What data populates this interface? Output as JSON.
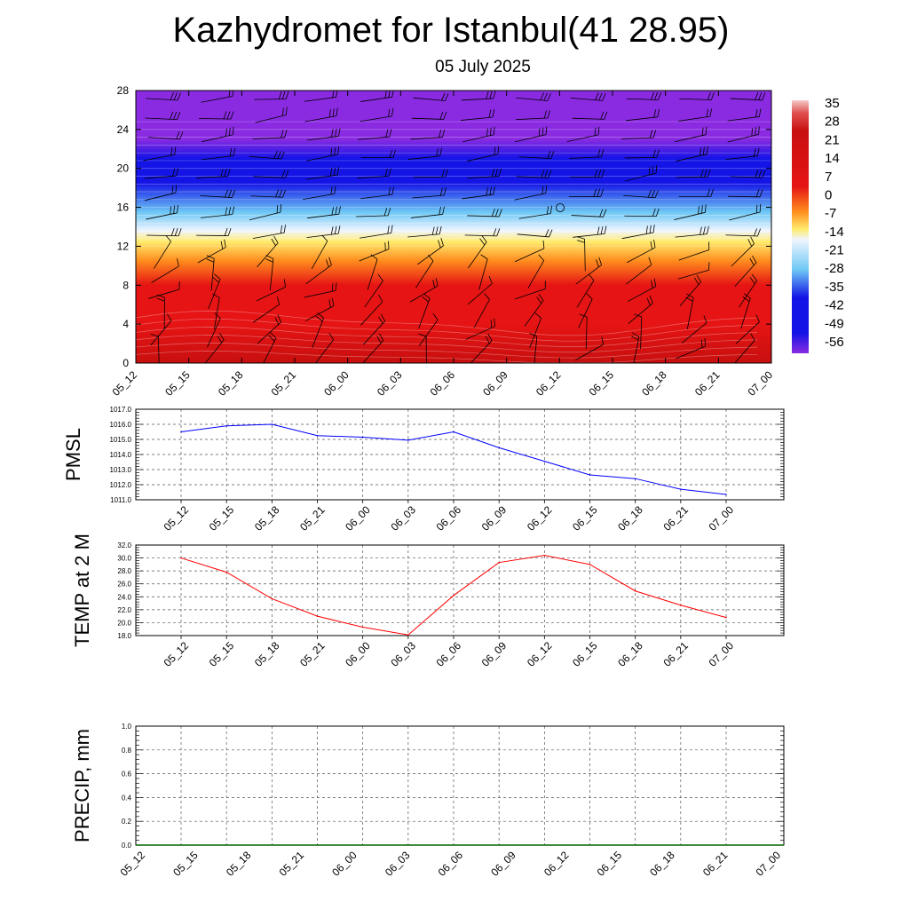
{
  "title": "Kazhydromet for Istanbul(41 28.95)",
  "subtitle": "05 July 2025",
  "chart_data": [
    {
      "type": "heatmap",
      "x_tick_labels": [
        "05_12",
        "05_15",
        "05_18",
        "05_21",
        "06_00",
        "06_03",
        "06_06",
        "06_09",
        "06_12",
        "06_15",
        "06_18",
        "06_21",
        "07_00"
      ],
      "ylabel": "",
      "y_ticks": [
        0,
        4,
        8,
        12,
        16,
        20,
        24,
        28
      ],
      "ylim": [
        0,
        28
      ],
      "colorbar_labels": [
        "35",
        "28",
        "21",
        "14",
        "7",
        "0",
        "-7",
        "-14",
        "-21",
        "-28",
        "-35",
        "-42",
        "-49",
        "-56"
      ],
      "colorbar_range": [
        -63,
        42
      ],
      "colors": {
        "violet": "#8a2be2",
        "blue": "#1414e6",
        "light_blue": "#6ec8f5",
        "pale": "#f0f5ff",
        "yellow": "#ffec6e",
        "orange": "#ff8c1e",
        "red": "#e61414",
        "dark_red": "#c80f0f"
      },
      "overlay": "wind barbs",
      "grid": false
    },
    {
      "type": "line",
      "ylabel": "PMSL",
      "x": [
        "05_12",
        "05_15",
        "05_18",
        "05_21",
        "06_00",
        "06_03",
        "06_06",
        "06_09",
        "06_12",
        "06_15",
        "06_18",
        "06_21",
        "07_00"
      ],
      "values": [
        1015.5,
        1015.9,
        1016.0,
        1015.25,
        1015.15,
        1014.95,
        1015.5,
        1014.45,
        1013.55,
        1012.65,
        1012.4,
        1011.7,
        1011.35
      ],
      "ylim": [
        1011.0,
        1017.0
      ],
      "y_ticks": [
        "1011.0",
        "1012.0",
        "1013.0",
        "1014.0",
        "1015.0",
        "1016.0",
        "1017.0"
      ],
      "grid": true,
      "line_color": "#0000ff"
    },
    {
      "type": "line",
      "ylabel": "TEMP at 2 M",
      "x": [
        "05_12",
        "05_15",
        "05_18",
        "05_21",
        "06_00",
        "06_03",
        "06_06",
        "06_09",
        "06_12",
        "06_15",
        "06_18",
        "06_21",
        "07_00"
      ],
      "values": [
        30.0,
        27.8,
        23.7,
        21.0,
        19.3,
        18.1,
        24.2,
        29.3,
        30.4,
        29.0,
        24.9,
        22.7,
        20.8
      ],
      "ylim": [
        18.0,
        32.0
      ],
      "y_ticks": [
        "18.0",
        "20.0",
        "22.0",
        "24.0",
        "26.0",
        "28.0",
        "30.0",
        "32.0"
      ],
      "grid": true,
      "line_color": "#ff0000"
    },
    {
      "type": "line",
      "ylabel": "PRECIP, mm",
      "x": [
        "05_12",
        "05_15",
        "05_18",
        "05_21",
        "06_00",
        "06_03",
        "06_06",
        "06_09",
        "06_12",
        "06_15",
        "06_18",
        "06_21",
        "07_00"
      ],
      "values": [
        0,
        0,
        0,
        0,
        0,
        0,
        0,
        0,
        0,
        0,
        0,
        0,
        0
      ],
      "ylim": [
        0.0,
        1.0
      ],
      "y_ticks": [
        "0.0",
        "0.2",
        "0.4",
        "0.6",
        "0.8",
        "1.0"
      ],
      "grid": true,
      "line_color": "#006400"
    }
  ]
}
